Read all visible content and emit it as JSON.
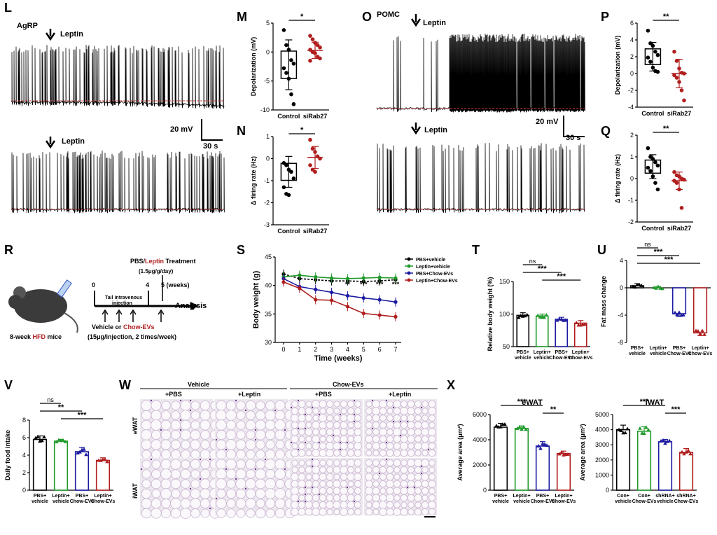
{
  "colors": {
    "black": "#000000",
    "green": "#1f9a2a",
    "blue": "#1c1aa0",
    "red": "#b01e1e",
    "dash": "#d23a3a"
  },
  "panels": {
    "L": {
      "letter": "L",
      "label": "AgRP",
      "leptin1": "Leptin",
      "leptin2": "Leptin",
      "scale_mv": "20 mV",
      "scale_s": "30 s"
    },
    "O": {
      "letter": "O",
      "label": "POMC",
      "leptin1": "Leptin",
      "leptin2": "Leptin",
      "scale_mv": "20 mV",
      "scale_s": "30 s"
    },
    "R": {
      "letter": "R",
      "treat_a": "PBS/",
      "treat_b": "Leptin",
      "treat_c": " Treatment",
      "dose": "(1.5μg/g/day)",
      "t0": "0",
      "t4": "4",
      "t5": "5 (weeks)",
      "tail": "Tail intravenous",
      "inj": "injection",
      "analysis": "Analysis",
      "veh_a": "Vehicle or ",
      "veh_b": "Chow-EVs",
      "dose2": "(15μg/injection, 2 times/week)",
      "mice_a": "8-week ",
      "mice_b": "HFD",
      "mice_c": " mice"
    },
    "W": {
      "letter": "W",
      "group1": "Vehicle",
      "group2": "Chow-EVs",
      "cols": [
        "+PBS",
        "+Leptin",
        "+PBS",
        "+Leptin"
      ],
      "rows": [
        "eWAT",
        "iWAT"
      ]
    }
  },
  "chart_data": [
    {
      "id": "M",
      "type": "scatter",
      "ylabel": "Depolarization (mV)",
      "ylim": [
        -10,
        5
      ],
      "yticks": [
        5,
        0,
        -5,
        -10
      ],
      "categories": [
        "Control",
        "siRab27"
      ],
      "sig": "*",
      "groups": [
        {
          "mean": -2.2,
          "sd": 4.3,
          "points": [
            3.8,
            1.2,
            0.4,
            -1.4,
            -2.0,
            -2.8,
            -3.6,
            -4.6,
            -7.3,
            -9.0
          ]
        },
        {
          "mean": 0.3,
          "sd": 1.4,
          "points": [
            2.8,
            2.2,
            1.6,
            1.2,
            0.8,
            0.4,
            0.0,
            -0.2,
            -0.8,
            -1.1,
            -1.5
          ]
        }
      ]
    },
    {
      "id": "N",
      "type": "scatter",
      "ylabel": "Δ firing rate (Hz)",
      "ylim": [
        -3,
        1
      ],
      "yticks": [
        1,
        0,
        -1,
        -2,
        -3
      ],
      "categories": [
        "Control",
        "siRab27"
      ],
      "sig": "*",
      "groups": [
        {
          "mean": -0.6,
          "sd": 0.7,
          "points": [
            -0.2,
            -0.3,
            -0.5,
            -0.6,
            -0.9,
            -1.3,
            -1.6,
            -1.65
          ]
        },
        {
          "mean": 0.05,
          "sd": 0.5,
          "points": [
            0.85,
            0.45,
            0.3,
            0.1,
            0.0,
            -0.3,
            -0.5,
            -0.6
          ]
        }
      ]
    },
    {
      "id": "P",
      "type": "scatter",
      "ylabel": "Depolarization (mV)",
      "ylim": [
        -4,
        6
      ],
      "yticks": [
        6,
        4,
        2,
        0,
        -2,
        -4
      ],
      "categories": [
        "Control",
        "siRab27"
      ],
      "sig": "**",
      "groups": [
        {
          "mean": 2.0,
          "sd": 1.7,
          "points": [
            5.1,
            3.6,
            3.3,
            2.6,
            2.2,
            1.9,
            1.4,
            0.7,
            0.3,
            0.2
          ]
        },
        {
          "mean": 0.0,
          "sd": 1.7,
          "points": [
            2.6,
            1.5,
            0.6,
            0.1,
            0.0,
            -0.2,
            -0.5,
            -1.0,
            -2.0,
            -3.2
          ]
        }
      ]
    },
    {
      "id": "Q",
      "type": "scatter",
      "ylabel": "Δ firing rate (Hz)",
      "ylim": [
        -2,
        2
      ],
      "yticks": [
        2,
        1,
        0,
        -1,
        -2
      ],
      "categories": [
        "Control",
        "siRab27"
      ],
      "sig": "**",
      "groups": [
        {
          "mean": 0.55,
          "sd": 0.55,
          "points": [
            1.4,
            1.0,
            0.9,
            0.75,
            0.6,
            0.5,
            0.35,
            0.1,
            -0.2,
            -0.5
          ]
        },
        {
          "mean": -0.1,
          "sd": 0.4,
          "points": [
            0.3,
            0.15,
            0.1,
            0.0,
            -0.05,
            -0.1,
            -0.2,
            -0.5,
            -1.35
          ]
        }
      ]
    },
    {
      "id": "S",
      "type": "line",
      "xlabel": "Time (weeks)",
      "ylabel": "Body weight (g)",
      "ylim": [
        30,
        45
      ],
      "yticks": [
        30,
        35,
        40,
        45
      ],
      "x": [
        0,
        1,
        2,
        3,
        4,
        5,
        6,
        7
      ],
      "series": [
        {
          "name": "PBS+vehicle",
          "color": "black",
          "values": [
            42,
            41.2,
            41,
            40.8,
            40.8,
            40.7,
            40.8,
            41
          ]
        },
        {
          "name": "Leptin+vehicle",
          "color": "green",
          "values": [
            41.5,
            41.8,
            41.5,
            41.3,
            41.2,
            41.3,
            41.4,
            41.3
          ]
        },
        {
          "name": "PBS+Chow-EVs",
          "color": "blue",
          "values": [
            41.2,
            39.8,
            39.3,
            38.8,
            38.2,
            37.8,
            37.5,
            37.1
          ]
        },
        {
          "name": "Leptin+Chow-EVs",
          "color": "red",
          "values": [
            40.6,
            39.5,
            37.5,
            37.4,
            36.3,
            35.1,
            34.8,
            34.5
          ]
        }
      ],
      "sig": [
        "**",
        "***",
        "***",
        "***"
      ],
      "sig_x": [
        4,
        5,
        6,
        7
      ]
    },
    {
      "id": "T",
      "type": "bar",
      "ylabel": "Relative body weight (%)",
      "ylim": [
        50,
        150
      ],
      "yticks": [
        50,
        100,
        150
      ],
      "categories": [
        "PBS+\nvehicle",
        "Leptin+\nvehicle",
        "PBS+\nChow-EVs",
        "Leptin+\nChow-EVs"
      ],
      "values": [
        98,
        97,
        92,
        86
      ],
      "sds": [
        4,
        3,
        3,
        4
      ],
      "colors": [
        "black",
        "green",
        "blue",
        "red"
      ],
      "sig": [
        {
          "a": 0,
          "b": 1,
          "t": "ns"
        },
        {
          "a": 0,
          "b": 2,
          "t": "***"
        },
        {
          "a": 1,
          "b": 3,
          "t": "***"
        }
      ]
    },
    {
      "id": "U",
      "type": "bar",
      "ylabel": "Fat mass change",
      "ylim": [
        -8,
        4
      ],
      "yticks": [
        4,
        0,
        -4,
        -8
      ],
      "categories": [
        "PBS+\nvehicle",
        "Leptin+\nvehicle",
        "PBS+\nChow-EVs",
        "Leptin+\nChow-EVs"
      ],
      "values": [
        0.3,
        0.0,
        -3.8,
        -6.6
      ],
      "sds": [
        0.3,
        0.2,
        0.4,
        0.4
      ],
      "colors": [
        "black",
        "green",
        "blue",
        "red"
      ],
      "sig": [
        {
          "a": 0,
          "b": 1,
          "t": "ns"
        },
        {
          "a": 0,
          "b": 2,
          "t": "***"
        },
        {
          "a": 0,
          "b": 3,
          "t": "***"
        }
      ]
    },
    {
      "id": "V",
      "type": "bar",
      "ylabel": "Daily food intake",
      "ylim": [
        0,
        8
      ],
      "yticks": [
        0,
        2,
        4,
        6,
        8
      ],
      "categories": [
        "PBS+\nvehicle",
        "Leptin+\nvehicle",
        "PBS+\nChow-EVs",
        "Leptin+\nChow-EVs"
      ],
      "values": [
        5.8,
        5.6,
        4.4,
        3.4
      ],
      "sds": [
        0.4,
        0.2,
        0.5,
        0.3
      ],
      "colors": [
        "black",
        "green",
        "blue",
        "red"
      ],
      "sig": [
        {
          "a": 0,
          "b": 1,
          "t": "ns"
        },
        {
          "a": 0,
          "b": 2,
          "t": "**"
        },
        {
          "a": 1,
          "b": 3,
          "t": "***"
        }
      ]
    },
    {
      "id": "X1",
      "type": "bar",
      "title": "eWAT",
      "ylabel": "Average area (μm²)",
      "ylim": [
        0,
        6000
      ],
      "yticks": [
        0,
        2000,
        4000,
        6000
      ],
      "categories": [
        "PBS+\nvehicle",
        "Leptin+\nvehicle",
        "PBS+\nChow-EVs",
        "Leptin+\nChow-EVs"
      ],
      "values": [
        5000,
        4900,
        3500,
        2900
      ],
      "sds": [
        300,
        200,
        350,
        200
      ],
      "colors": [
        "black",
        "green",
        "blue",
        "red"
      ],
      "sig": [
        {
          "a": 0,
          "b": 2,
          "t": "***"
        },
        {
          "a": 2,
          "b": 3,
          "t": "**"
        }
      ]
    },
    {
      "id": "X2",
      "type": "bar",
      "title": "iWAT",
      "ylabel": "Average area (μm²)",
      "ylim": [
        0,
        5000
      ],
      "yticks": [
        0,
        1000,
        2000,
        3000,
        4000,
        5000
      ],
      "categories": [
        "Con+\nvehicle",
        "Con+\nChow-EVs",
        "shRNA+\nvehicle",
        "shRNA+\nChow-EVs"
      ],
      "values": [
        4000,
        3900,
        3200,
        2500
      ],
      "sds": [
        300,
        300,
        150,
        250
      ],
      "colors": [
        "black",
        "green",
        "blue",
        "red"
      ],
      "sig": [
        {
          "a": 0,
          "b": 2,
          "t": "***"
        },
        {
          "a": 2,
          "b": 3,
          "t": "***"
        }
      ]
    }
  ]
}
